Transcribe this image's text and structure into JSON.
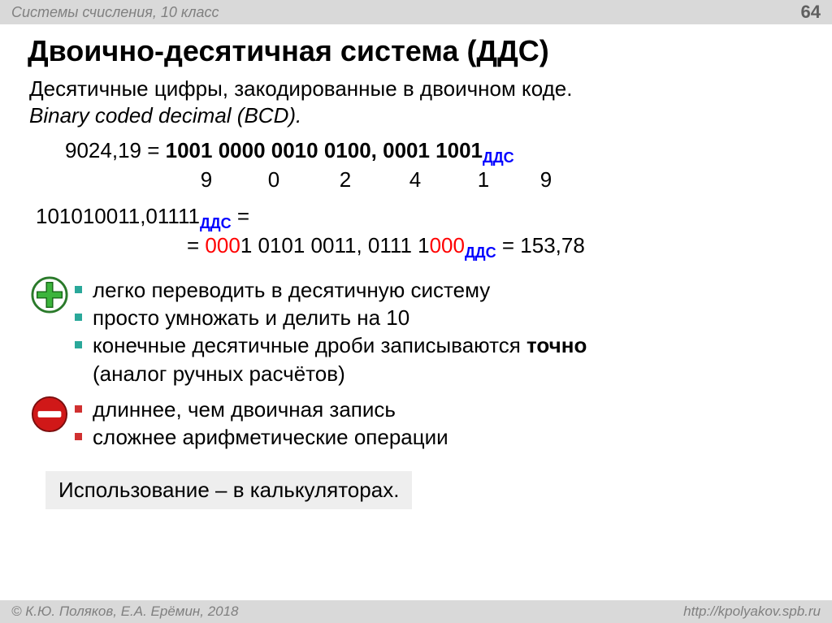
{
  "header": {
    "breadcrumb": "Системы счисления, 10 класс",
    "page_number": "64"
  },
  "title": "Двоично-десятичная система (ДДС)",
  "lead_line1": "Десятичные цифры, закодированные в двоичном коде.",
  "lead_line2": "Binary coded decimal (BCD).",
  "example1": {
    "lhs": "9024,19 = ",
    "rhs": "1001 0000 0010 0100, 0001 1001",
    "sub": "ДДС",
    "digits": [
      "9",
      "0",
      "2",
      "4",
      "1",
      "9"
    ],
    "digit_widths": [
      78,
      88,
      88,
      84,
      84,
      70
    ]
  },
  "example2": {
    "line1_lhs": "101010011,01111",
    "line1_sub": "ДДС",
    "line1_tail": " =",
    "line2_pre": "= ",
    "line2_red": "000",
    "line2_mid": "1 0101 0011, 0111 1",
    "line2_red2": "000",
    "line2_sub": "ДДС",
    "line2_tail": " = 153,78"
  },
  "pros": [
    "легко переводить в десятичную систему",
    "просто умножать и делить на 10",
    "конечные десятичные дроби записываются ",
    "точно",
    " (аналог ручных расчётов)"
  ],
  "cons": [
    "длиннее, чем двоичная запись",
    "сложнее арифметические операции"
  ],
  "usage": "Использование – в калькуляторах.",
  "footer": {
    "left": "© К.Ю. Поляков, Е.А. Ерёмин, 2018",
    "right": "http://kpolyakov.spb.ru"
  },
  "colors": {
    "plus_green": "#3cb43c",
    "plus_stroke": "#2a7a2a",
    "minus_red": "#d01818",
    "minus_stroke": "#7a0e0e",
    "bullet_teal": "#2aa89a",
    "bullet_red": "#d03030",
    "link_blue": "#0000ff",
    "error_red": "#ff0000"
  }
}
